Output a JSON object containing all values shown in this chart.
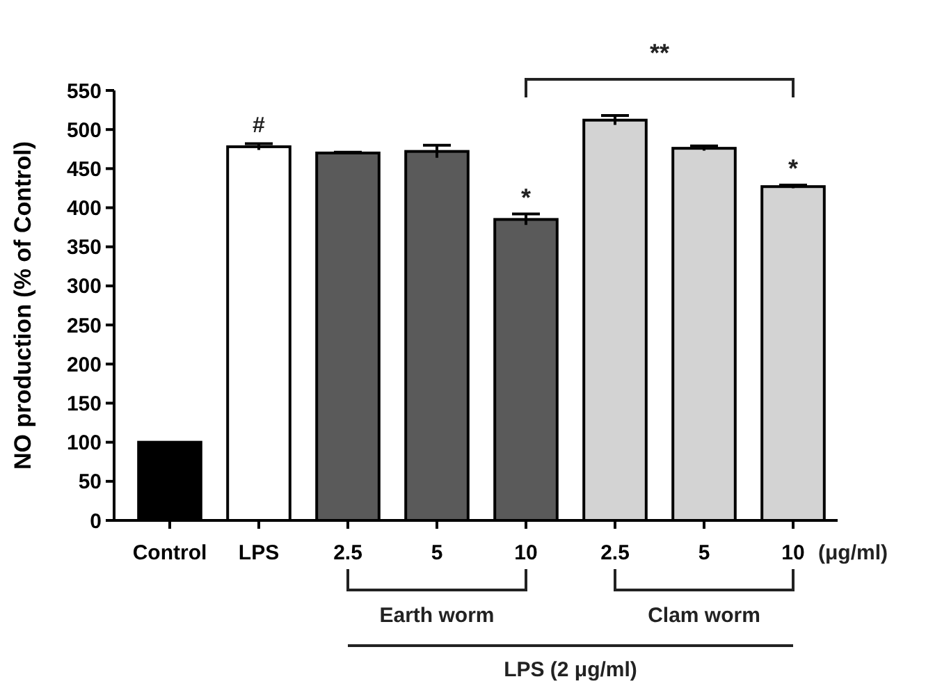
{
  "chart_data": {
    "type": "bar",
    "ylabel": "NO production (% of Control)",
    "categories": [
      "Control",
      "LPS",
      "2.5",
      "5",
      "10",
      "2.5",
      "5",
      "10"
    ],
    "values": [
      100,
      478,
      470,
      472,
      385,
      512,
      476,
      427
    ],
    "errors": [
      null,
      4,
      1,
      8,
      7,
      6,
      3,
      2
    ],
    "colors": [
      "#000000",
      "#ffffff",
      "#5a5a5a",
      "#5a5a5a",
      "#5a5a5a",
      "#d3d3d3",
      "#d3d3d3",
      "#d3d3d3"
    ],
    "ylim": [
      0,
      550
    ],
    "yticks": [
      0,
      50,
      100,
      150,
      200,
      250,
      300,
      350,
      400,
      450,
      500,
      550
    ],
    "grid": false,
    "annotations": [
      "#",
      "*",
      "*",
      "**",
      "Earth worm",
      "Clam worm",
      "LPS (2 μg/ml)",
      "(μg/ml)"
    ]
  }
}
